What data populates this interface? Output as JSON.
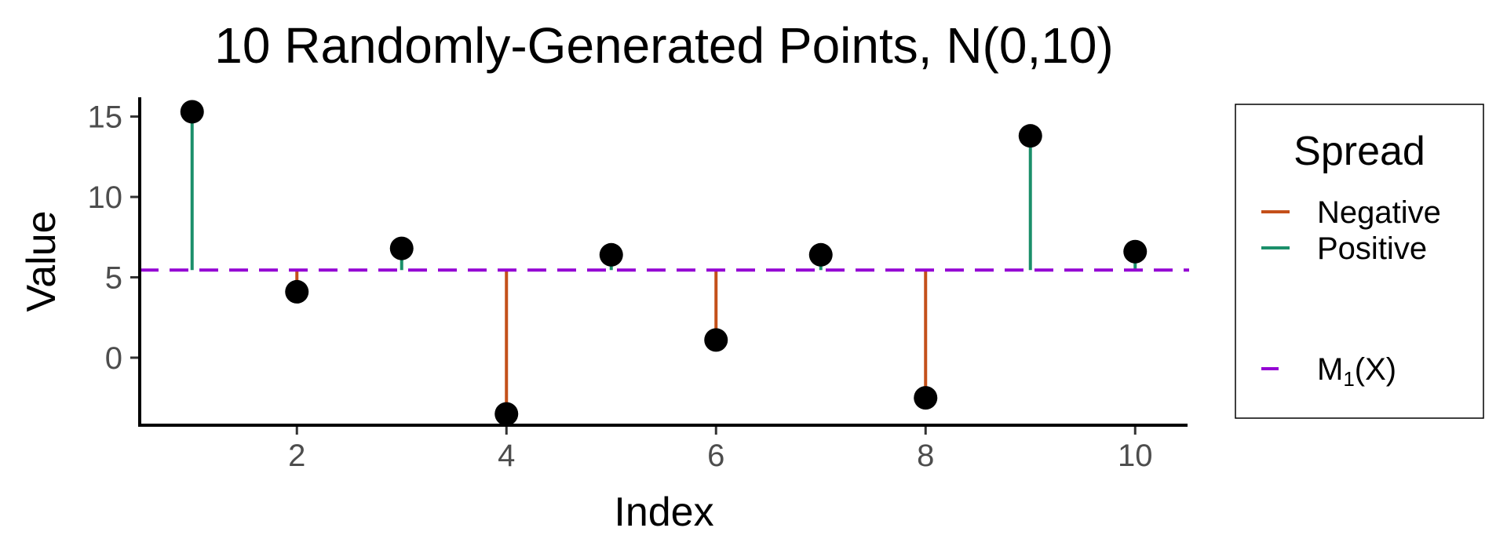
{
  "chart_data": {
    "type": "scatter",
    "title": "10 Randomly-Generated Points, N(0,10)",
    "xlabel": "Index",
    "ylabel": "Value",
    "xlim": [
      0.5,
      10.5
    ],
    "ylim": [
      -4.2,
      16.2
    ],
    "x_ticks": [
      2,
      4,
      6,
      8,
      10
    ],
    "y_ticks": [
      0,
      5,
      10,
      15
    ],
    "grid": false,
    "points": [
      {
        "x": 1,
        "y": 15.3
      },
      {
        "x": 2,
        "y": 4.1
      },
      {
        "x": 3,
        "y": 6.8
      },
      {
        "x": 4,
        "y": -3.5
      },
      {
        "x": 5,
        "y": 6.4
      },
      {
        "x": 6,
        "y": 1.1
      },
      {
        "x": 7,
        "y": 6.4
      },
      {
        "x": 8,
        "y": -2.5
      },
      {
        "x": 9,
        "y": 13.8
      },
      {
        "x": 10,
        "y": 6.6
      }
    ],
    "mean_line": {
      "label_main": "M",
      "label_sub": "1",
      "label_tail": "(X)",
      "y": 5.45,
      "color": "#9400D3"
    },
    "point_color": "#000000",
    "legend": {
      "title": "Spread",
      "position": "right",
      "entries": [
        {
          "label": "Negative",
          "color": "#C4501A"
        },
        {
          "label": "Positive",
          "color": "#1B8F6A"
        }
      ]
    }
  }
}
